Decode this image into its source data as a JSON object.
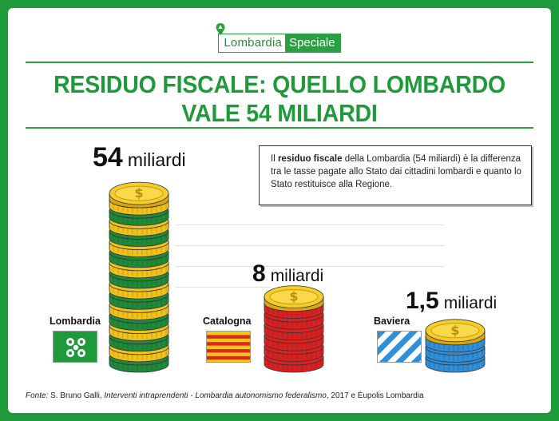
{
  "logo": {
    "part1": "Lombardia",
    "part2": "Speciale"
  },
  "title": {
    "line1": "RESIDUO FISCALE: QUELLO LOMBARDO",
    "line2": "VALE 54 MILIARDI"
  },
  "info": {
    "pre": "Il ",
    "bold": "residuo fiscale",
    "post": " della Lombardia (54 miliardi) è la differenza tra le tasse pagate allo Stato dai cittadini lombardi e quanto lo Stato restituisce alla Regione."
  },
  "source": {
    "prefix": "Fonte:",
    "author": " S. Bruno Galli, ",
    "work": "Interventi intraprendenti - Lombardia autonomismo federalismo",
    "suffix": ", 2017 e Éupolis Lombardia"
  },
  "chart_data": {
    "type": "bar",
    "unit": "miliardi",
    "categories": [
      "Lombardia",
      "Catalogna",
      "Baviera"
    ],
    "values": [
      54,
      8,
      1.5
    ],
    "value_labels": [
      "54",
      "8",
      "1,5"
    ],
    "coin_colors": {
      "Lombardia": [
        "#1e8a3a",
        "#f2c21a"
      ],
      "Catalogna": [
        "#d82222",
        "#f2c21a"
      ],
      "Baviera": [
        "#2f8fd8",
        "#f2c21a"
      ]
    }
  }
}
